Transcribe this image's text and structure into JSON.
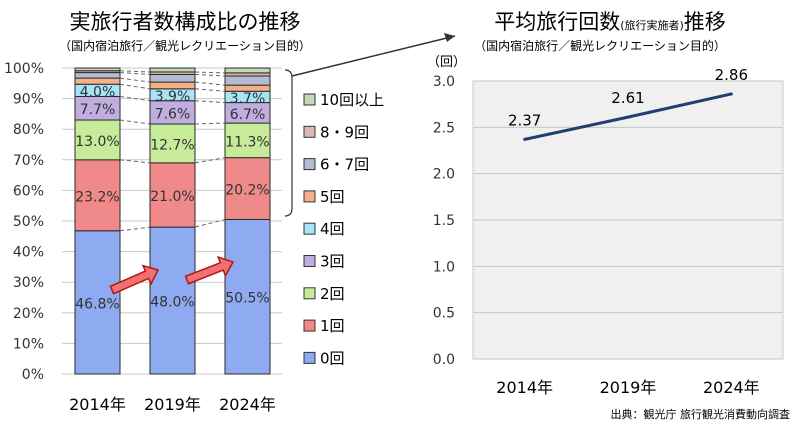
{
  "chart_data": [
    {
      "type": "bar",
      "stacked": true,
      "percent": true,
      "title": "実旅行者数構成比の推移",
      "subtitle": "（国内宿泊旅行／観光レクリエーション目的）",
      "categories": [
        "2014年",
        "2019年",
        "2024年"
      ],
      "ylim": [
        0,
        100
      ],
      "yticks": [
        "0%",
        "10%",
        "20%",
        "30%",
        "40%",
        "50%",
        "60%",
        "70%",
        "80%",
        "90%",
        "100%"
      ],
      "grid": true,
      "legend_position": "right",
      "series": [
        {
          "name": "0回",
          "values": [
            46.8,
            48.0,
            50.5
          ],
          "labels": [
            "46.8%",
            "48.0%",
            "50.5%"
          ],
          "color": "#8eaaf0"
        },
        {
          "name": "1回",
          "values": [
            23.2,
            21.0,
            20.2
          ],
          "labels": [
            "23.2%",
            "21.0%",
            "20.2%"
          ],
          "color": "#f08a8a"
        },
        {
          "name": "2回",
          "values": [
            13.0,
            12.7,
            11.3
          ],
          "labels": [
            "13.0%",
            "12.7%",
            "11.3%"
          ],
          "color": "#c6ec9a"
        },
        {
          "name": "3回",
          "values": [
            7.7,
            7.6,
            6.7
          ],
          "labels": [
            "7.7%",
            "7.6%",
            "6.7%"
          ],
          "color": "#c0aee0"
        },
        {
          "name": "4回",
          "values": [
            4.0,
            3.9,
            3.7
          ],
          "labels": [
            "4.0%",
            "3.9%",
            "3.7%"
          ],
          "color": "#a8e4f4"
        },
        {
          "name": "5回",
          "values": [
            2.0,
            2.2,
            2.0
          ],
          "color": "#f6b088"
        },
        {
          "name": "6・7回",
          "values": [
            1.8,
            2.5,
            3.0
          ],
          "color": "#b4bcd4"
        },
        {
          "name": "8・9回",
          "values": [
            0.6,
            0.8,
            1.0
          ],
          "color": "#dcb8b8"
        },
        {
          "name": "10回以上",
          "values": [
            0.9,
            1.3,
            1.6
          ],
          "color": "#c4d8b4"
        }
      ]
    },
    {
      "type": "line",
      "title": "平均旅行回数",
      "title_note": "(旅行実施者)",
      "title_suffix": "推移",
      "subtitle": "（国内宿泊旅行／観光レクリエーション目的）",
      "ylabel": "（回）",
      "categories": [
        "2014年",
        "2019年",
        "2024年"
      ],
      "values": [
        2.37,
        2.61,
        2.86
      ],
      "labels": [
        "2.37",
        "2.61",
        "2.86"
      ],
      "ylim": [
        0,
        3.0
      ],
      "yticks": [
        "0.0",
        "0.5",
        "1.0",
        "1.5",
        "2.0",
        "2.5",
        "3.0"
      ],
      "grid": true,
      "line_color": "#1f3f74",
      "plot_bg": "#f0f0f0"
    }
  ],
  "source": "出典：観光庁 旅行観光消費動向調査"
}
